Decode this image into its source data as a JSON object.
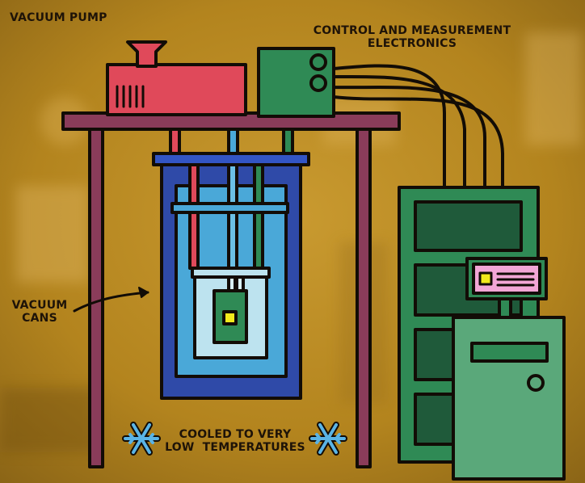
{
  "labels": {
    "vacuum_pump": "VACUUM PUMP",
    "electronics_line1": "CONTROL AND MEASUREMENT",
    "electronics_line2": "ELECTRONICS",
    "vacuum_cans_line1": "VACUUM",
    "vacuum_cans_line2": "CANS",
    "cooled_line1": "COOLED TO VERY",
    "cooled_line2": "LOW  TEMPERATURES"
  },
  "icons": {
    "snowflake_left": "snowflake-icon",
    "snowflake_right": "snowflake-icon",
    "arrow": "curved-arrow-icon"
  },
  "colors": {
    "background": "#b98a22",
    "outline": "#120c06",
    "pump": "#e0495a",
    "electronics_box": "#2f8a55",
    "table": "#8a3c5a",
    "outer_can": "#2f4aa8",
    "inner_can": "#4aa8d8",
    "sample_stage": "#2f8a55",
    "sample_chip": "#f2ea1c",
    "rack": "#2f8a55",
    "rack_slot": "#1f5a3a",
    "computer": "#5aa87a",
    "monitor_screen": "#f2a6d6",
    "snowflake": "#5ab4e6"
  }
}
